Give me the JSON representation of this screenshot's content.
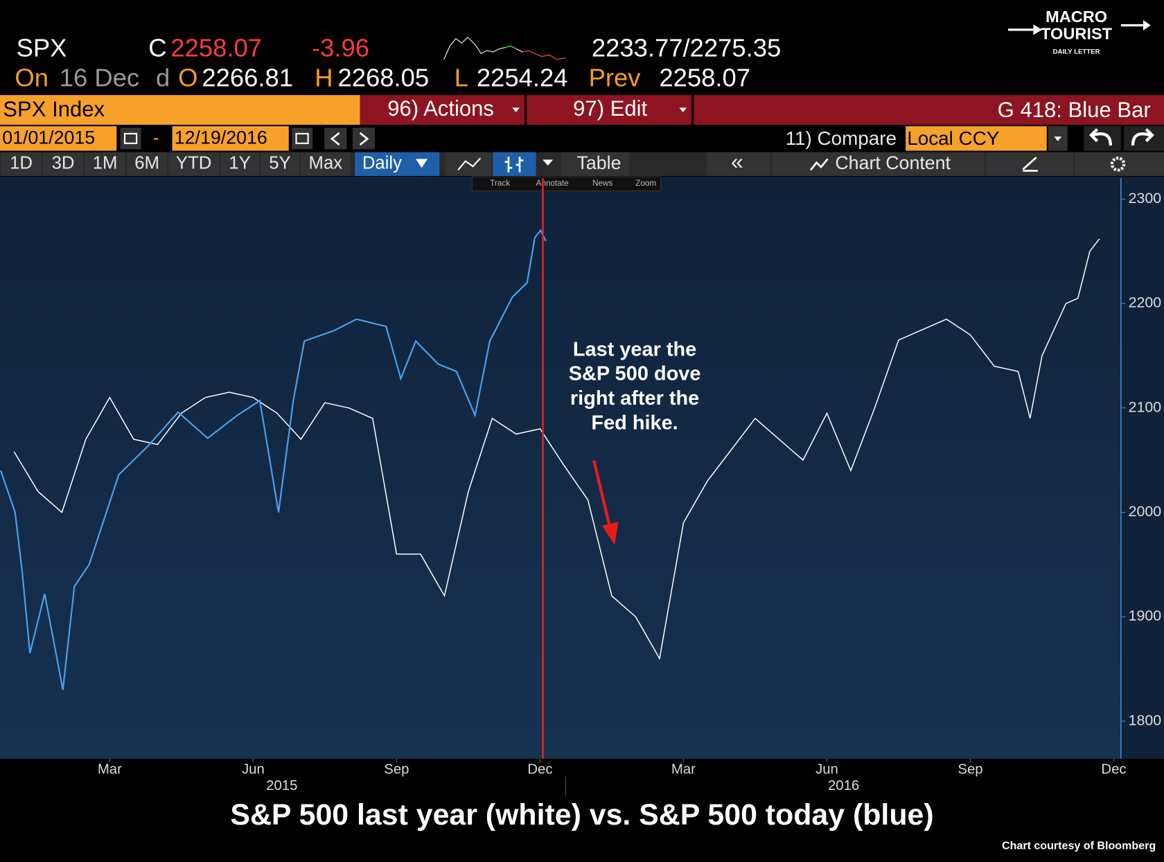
{
  "header": {
    "ticker": "SPX",
    "close_label": "C",
    "last": "2258.07",
    "change": "-3.96",
    "range": "2233.77/2275.35",
    "on_label": "On",
    "date": "16 Dec",
    "freq": "d",
    "open_label": "O",
    "open": "2266.81",
    "high_label": "H",
    "high": "2268.05",
    "low_label": "L",
    "low": "2254.24",
    "prev_label": "Prev",
    "prev": "2258.07"
  },
  "logo": {
    "line1": "MACRO",
    "line2": "TOURIST",
    "line3": "DAILY LETTER"
  },
  "toolbar": {
    "security": "SPX Index",
    "actions": "96) Actions",
    "edit": "97) Edit",
    "title": "G 418: Blue Bar",
    "start_date": "01/01/2015",
    "dash": "-",
    "end_date": "12/19/2016",
    "compare": "11) Compare",
    "currency": "Local CCY",
    "periods": [
      "1D",
      "3D",
      "1M",
      "6M",
      "YTD",
      "1Y",
      "5Y",
      "Max"
    ],
    "frequency": "Daily",
    "table": "Table",
    "collapse": "«",
    "chart_content": "Chart Content",
    "tools": [
      "Track",
      "Annotate",
      "News",
      "Zoom"
    ]
  },
  "chart_data": {
    "type": "line",
    "series": [
      {
        "color": "#ffffff",
        "x": [
          0,
          0.5,
          1,
          1.5,
          2,
          2.5,
          3,
          3.5,
          4,
          4.5,
          5,
          5.5,
          6,
          6.5,
          7,
          7.5,
          8,
          8.5,
          9,
          9.5,
          10,
          10.5,
          11,
          11.5,
          12,
          12.5,
          13,
          13.5,
          14,
          14.5,
          15,
          15.5,
          16,
          16.5,
          17,
          17.5,
          18,
          18.5,
          19,
          19.5,
          20,
          20.5,
          21,
          21.25,
          21.5,
          22,
          22.25,
          22.5,
          22.7
        ],
        "values": [
          2058,
          2020,
          2000,
          2070,
          2110,
          2070,
          2065,
          2095,
          2110,
          2115,
          2110,
          2095,
          2070,
          2105,
          2100,
          2090,
          1960,
          1960,
          1920,
          2020,
          2090,
          2075,
          2080,
          2045,
          2012,
          1920,
          1900,
          1860,
          1990,
          2030,
          2060,
          2090,
          2070,
          2050,
          2095,
          2040,
          2100,
          2165,
          2175,
          2185,
          2170,
          2140,
          2135,
          2090,
          2150,
          2200,
          2205,
          2250,
          2262
        ]
      },
      {
        "color": "#4aa3f0",
        "x": [
          -0.28,
          0.02,
          0.17,
          0.33,
          0.64,
          1.02,
          1.26,
          1.57,
          1.88,
          2.19,
          2.81,
          3.43,
          4.05,
          4.67,
          5.14,
          5.53,
          5.84,
          6.07,
          6.69,
          7.16,
          7.78,
          8.09,
          8.4,
          8.87,
          9.25,
          9.64,
          9.95,
          10.42,
          10.73,
          10.89,
          11.01,
          11.12
        ],
        "values": [
          2040,
          2000,
          1943,
          1865,
          1922,
          1830,
          1929,
          1950,
          1993,
          2036,
          2064,
          2096,
          2071,
          2093,
          2107,
          2000,
          2107,
          2164,
          2174,
          2185,
          2178,
          2128,
          2164,
          2142,
          2135,
          2093,
          2164,
          2206,
          2220,
          2263,
          2270,
          2260
        ]
      }
    ],
    "xlim": [
      -0.295,
      23.15
    ],
    "xticks": [
      {
        "value": 2,
        "label": "Mar"
      },
      {
        "value": 5,
        "label": "Jun"
      },
      {
        "value": 8,
        "label": "Sep"
      },
      {
        "value": 11,
        "label": "Dec"
      },
      {
        "value": 14,
        "label": "Mar"
      },
      {
        "value": 17,
        "label": "Jun"
      },
      {
        "value": 20,
        "label": "Sep"
      },
      {
        "value": 23,
        "label": "Dec"
      }
    ],
    "year_ticks": [
      {
        "value": 5.6,
        "label": "2015"
      },
      {
        "value": 17.35,
        "label": "2016"
      }
    ],
    "ylim": [
      1764,
      2320
    ],
    "yticks": [
      1800,
      1900,
      2000,
      2100,
      2200,
      2300
    ],
    "marker_line": {
      "x": 11.06,
      "color": "#e0202a"
    },
    "annotation": {
      "lines": [
        "Last year the",
        "S&P 500 dove",
        "right after the",
        "Fed hike."
      ],
      "arrow_color": "#e81c1c"
    }
  },
  "caption": "S&P 500 last year (white) vs. S&P 500 today (blue)",
  "credit": "Chart courtesy of Bloomberg"
}
